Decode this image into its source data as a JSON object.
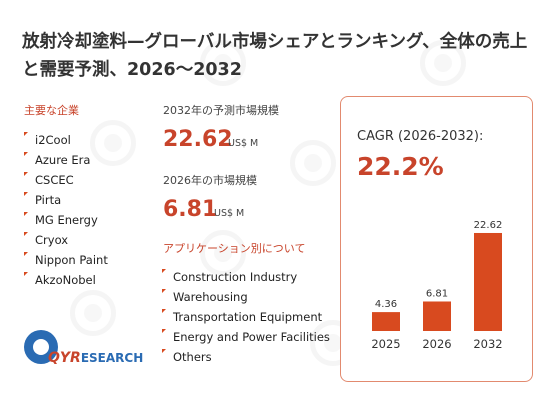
{
  "title": "放射冷却塗料—グローバル市場シェアとランキング、全体の売上と需要予測、2026〜2032",
  "players_label": "主要な企業",
  "players": [
    "i2Cool",
    "Azure Era",
    "CSCEC",
    "Pirta",
    "MG Energy",
    "Cryox",
    "Nippon Paint",
    "AkzoNobel"
  ],
  "forecast_2032_label": "2032年の予測市場規模",
  "forecast_2032_value": "22.62",
  "forecast_2032_unit": "US$ M",
  "size_2026_label": "2026年の市場規模",
  "size_2026_value": "6.81",
  "size_2026_unit": "US$ M",
  "applications_label": "アプリケーション別について",
  "applications": [
    "Construction Industry",
    "Warehousing",
    "Transportation Equipment",
    "Energy and Power Facilities",
    "Others"
  ],
  "logo": {
    "brand": "QYR",
    "suffix": "ESEARCH"
  },
  "cagr_label": "CAGR (2026-2032):",
  "cagr_value": "22.2%",
  "colors": {
    "accent": "#c8442b",
    "bar": "#d84a1f",
    "panel_border": "#e28a6f"
  },
  "chart_data": {
    "type": "bar",
    "categories": [
      "2025",
      "2026",
      "2032"
    ],
    "values": [
      4.36,
      6.81,
      22.62
    ],
    "data_labels": [
      "4.36",
      "6.81",
      "22.62"
    ],
    "title": "",
    "xlabel": "",
    "ylabel": "",
    "ylim": [
      0,
      24
    ],
    "grid": false,
    "legend": "none"
  }
}
